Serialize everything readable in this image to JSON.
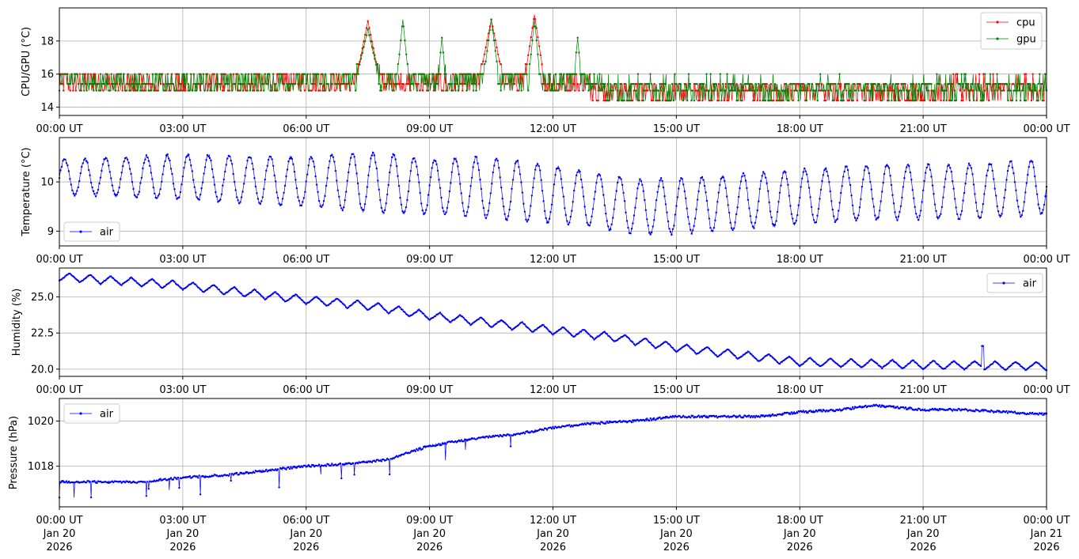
{
  "figure": {
    "x_ticks": [
      "00:00 UT",
      "03:00 UT",
      "06:00 UT",
      "09:00 UT",
      "12:00 UT",
      "15:00 UT",
      "18:00 UT",
      "21:00 UT",
      "00:00 UT"
    ],
    "x_ticks_bottom": [
      [
        "00:00 UT",
        "Jan 20",
        "2026"
      ],
      [
        "03:00 UT",
        "Jan 20",
        "2026"
      ],
      [
        "06:00 UT",
        "Jan 20",
        "2026"
      ],
      [
        "09:00 UT",
        "Jan 20",
        "2026"
      ],
      [
        "12:00 UT",
        "Jan 20",
        "2026"
      ],
      [
        "15:00 UT",
        "Jan 20",
        "2026"
      ],
      [
        "18:00 UT",
        "Jan 20",
        "2026"
      ],
      [
        "21:00 UT",
        "Jan 20",
        "2026"
      ],
      [
        "00:00 UT",
        "Jan 21",
        "2026"
      ]
    ]
  },
  "chart_data": [
    {
      "type": "line",
      "ylabel": "CPU/GPU (°C)",
      "xlim": [
        "2026-01-20T00:00Z",
        "2026-01-21T00:00Z"
      ],
      "ylim": [
        13.5,
        20.0
      ],
      "yticks": [
        14,
        16,
        18
      ],
      "yticklabels": [
        "14",
        "16",
        "18"
      ],
      "grid": true,
      "legend": "top-right",
      "series": [
        {
          "name": "cpu",
          "color": "#ff0000",
          "hours": [
            0,
            2,
            4,
            6,
            7.2,
            7.5,
            7.8,
            8.5,
            9.0,
            9.5,
            10.2,
            10.5,
            10.8,
            11.3,
            11.55,
            11.8,
            12.5,
            13.5,
            15,
            18,
            21,
            24
          ],
          "values": [
            15.5,
            15.4,
            15.4,
            15.5,
            15.5,
            19.2,
            15.5,
            15.5,
            15.4,
            15.5,
            15.5,
            19.3,
            15.5,
            15.5,
            19.6,
            15.5,
            15.5,
            15.0,
            15.0,
            15.0,
            15.0,
            15.2
          ]
        },
        {
          "name": "gpu",
          "color": "#008000",
          "hours": [
            0,
            2,
            4,
            6,
            7.2,
            7.5,
            7.8,
            8.2,
            8.35,
            8.5,
            9.2,
            9.3,
            9.4,
            10.3,
            10.5,
            10.7,
            11.4,
            11.55,
            11.7,
            12.5,
            12.6,
            12.7,
            13.5,
            15,
            18,
            21,
            24
          ],
          "values": [
            15.5,
            15.4,
            15.4,
            15.5,
            15.5,
            18.7,
            15.5,
            15.5,
            19.3,
            15.5,
            15.5,
            18.2,
            15.5,
            15.5,
            19.3,
            15.5,
            15.5,
            19.3,
            15.5,
            15.5,
            18.2,
            15.5,
            15.0,
            15.0,
            15.0,
            15.0,
            15.2
          ]
        }
      ]
    },
    {
      "type": "line",
      "ylabel": "Temperature (°C)",
      "xlim": [
        "2026-01-20T00:00Z",
        "2026-01-21T00:00Z"
      ],
      "ylim": [
        8.7,
        10.9
      ],
      "yticks": [
        9,
        10
      ],
      "yticklabels": [
        "9",
        "10"
      ],
      "grid": true,
      "legend": "bottom-left",
      "series": [
        {
          "name": "air",
          "color": "#0000ff",
          "hours": [
            0,
            3,
            6,
            7.5,
            9,
            10,
            11.5,
            12.5,
            14,
            15,
            16.5,
            18,
            20,
            22,
            24
          ],
          "values": [
            10.1,
            10.1,
            10.0,
            10.0,
            9.9,
            9.9,
            9.8,
            9.7,
            9.5,
            9.5,
            9.6,
            9.7,
            9.8,
            9.8,
            9.9
          ],
          "amplitude_c": [
            0.35,
            0.45,
            0.5,
            0.6,
            0.55,
            0.6,
            0.6,
            0.55,
            0.55,
            0.55,
            0.55,
            0.55,
            0.55,
            0.55,
            0.55
          ],
          "cycle_hours": 0.5
        }
      ]
    },
    {
      "type": "line",
      "ylabel": "Humidity (%)",
      "xlim": [
        "2026-01-20T00:00Z",
        "2026-01-21T00:00Z"
      ],
      "ylim": [
        19.5,
        27.0
      ],
      "yticks": [
        20.0,
        22.5,
        25.0
      ],
      "yticklabels": [
        "20.0",
        "22.5",
        "25.0"
      ],
      "grid": true,
      "legend": "top-right",
      "series": [
        {
          "name": "air",
          "color": "#0000ff",
          "hours": [
            0,
            3,
            6,
            7.5,
            9,
            10.5,
            12,
            13.5,
            15,
            16.5,
            18,
            21,
            24
          ],
          "values": [
            26.4,
            25.8,
            24.8,
            24.4,
            23.7,
            23.2,
            22.7,
            22.2,
            21.5,
            21.0,
            20.5,
            20.3,
            20.2
          ],
          "amplitude_pct": 0.3,
          "cycle_hours": 0.5
        }
      ]
    },
    {
      "type": "line",
      "ylabel": "Pressure (hPa)",
      "xlim": [
        "2026-01-20T00:00Z",
        "2026-01-21T00:00Z"
      ],
      "ylim": [
        1016.2,
        1021.0
      ],
      "yticks": [
        1018,
        1020
      ],
      "yticklabels": [
        "1018",
        "1020"
      ],
      "grid": true,
      "legend": "top-left",
      "series": [
        {
          "name": "air",
          "color": "#0000ff",
          "hours": [
            0,
            2,
            3,
            4,
            5,
            6,
            7,
            8,
            9,
            10,
            11,
            12,
            13,
            14,
            15,
            16,
            17,
            18,
            19,
            19.8,
            21,
            22,
            23,
            24
          ],
          "values": [
            1017.3,
            1017.3,
            1017.5,
            1017.6,
            1017.8,
            1018.0,
            1018.1,
            1018.3,
            1018.9,
            1019.2,
            1019.4,
            1019.7,
            1019.9,
            1020.0,
            1020.2,
            1020.2,
            1020.2,
            1020.4,
            1020.5,
            1020.7,
            1020.5,
            1020.5,
            1020.4,
            1020.3
          ]
        }
      ]
    }
  ]
}
